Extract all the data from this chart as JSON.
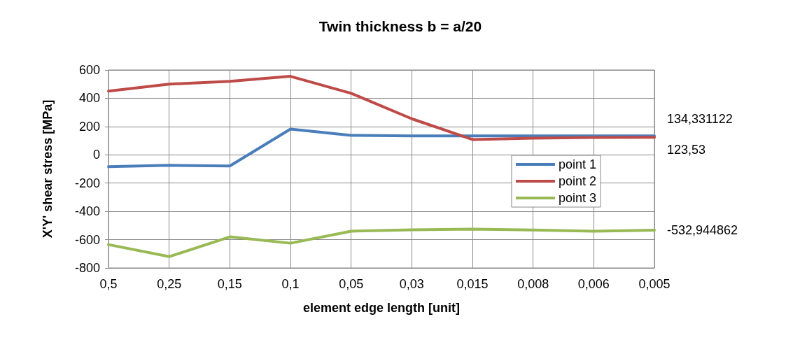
{
  "chart_data": {
    "type": "line",
    "title": "Twin thickness b = a/20",
    "xlabel": "element edge length [unit]",
    "ylabel": "X'Y' shear stress [MPa]",
    "categories": [
      "0,5",
      "0,25",
      "0,15",
      "0,1",
      "0,05",
      "0,03",
      "0,015",
      "0,008",
      "0,006",
      "0,005"
    ],
    "series": [
      {
        "name": "point 1",
        "color": "#4a7ebb",
        "values": [
          -84,
          -74,
          -79,
          182,
          138,
          134,
          134,
          134,
          134,
          134.331122
        ],
        "value_labels": [
          null,
          null,
          null,
          null,
          null,
          null,
          null,
          null,
          null,
          "134,331122"
        ]
      },
      {
        "name": "point 2",
        "color": "#be4b48",
        "values": [
          450,
          500,
          520,
          555,
          435,
          255,
          108,
          118,
          123,
          123.53
        ],
        "value_labels": [
          null,
          null,
          null,
          null,
          null,
          null,
          null,
          null,
          null,
          "123,53"
        ]
      },
      {
        "name": "point 3",
        "color": "#98b954",
        "values": [
          -635,
          -720,
          -580,
          -625,
          -540,
          -530,
          -525,
          -532,
          -540,
          -532.944862
        ],
        "value_labels": [
          null,
          null,
          null,
          null,
          null,
          null,
          null,
          null,
          null,
          "-532,944862"
        ]
      }
    ],
    "ylim": [
      -800,
      600
    ],
    "yticks": [
      -800,
      -600,
      -400,
      -200,
      0,
      200,
      400,
      600
    ],
    "grid": true,
    "legend": "right",
    "marker": "none",
    "line_style": "solid"
  }
}
